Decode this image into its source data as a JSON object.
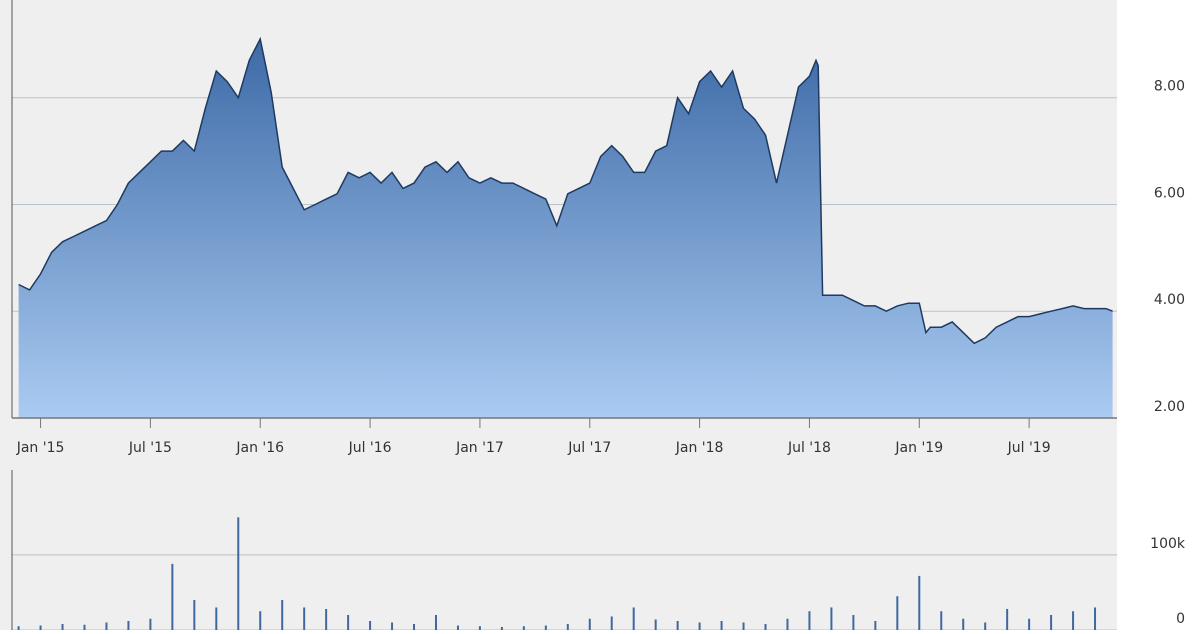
{
  "chart_data": [
    {
      "type": "area",
      "color": "#1f3a60",
      "grid": true,
      "x": [
        2014.9,
        2014.95,
        2015.0,
        2015.05,
        2015.1,
        2015.15,
        2015.2,
        2015.25,
        2015.3,
        2015.35,
        2015.4,
        2015.45,
        2015.5,
        2015.55,
        2015.6,
        2015.65,
        2015.7,
        2015.75,
        2015.8,
        2015.85,
        2015.9,
        2015.95,
        2016.0,
        2016.05,
        2016.1,
        2016.15,
        2016.2,
        2016.25,
        2016.3,
        2016.35,
        2016.4,
        2016.45,
        2016.5,
        2016.55,
        2016.6,
        2016.65,
        2016.7,
        2016.75,
        2016.8,
        2016.85,
        2016.9,
        2016.95,
        2017.0,
        2017.05,
        2017.1,
        2017.15,
        2017.2,
        2017.25,
        2017.3,
        2017.35,
        2017.4,
        2017.45,
        2017.5,
        2017.55,
        2017.6,
        2017.65,
        2017.7,
        2017.75,
        2017.8,
        2017.85,
        2017.9,
        2017.95,
        2018.0,
        2018.05,
        2018.1,
        2018.15,
        2018.2,
        2018.25,
        2018.3,
        2018.35,
        2018.4,
        2018.45,
        2018.5,
        2018.53,
        2018.54,
        2018.56,
        2018.6,
        2018.65,
        2018.7,
        2018.75,
        2018.8,
        2018.85,
        2018.9,
        2018.95,
        2019.0,
        2019.03,
        2019.05,
        2019.1,
        2019.15,
        2019.2,
        2019.25,
        2019.3,
        2019.35,
        2019.4,
        2019.45,
        2019.5,
        2019.55,
        2019.6,
        2019.65,
        2019.7,
        2019.75,
        2019.8,
        2019.85,
        2019.88
      ],
      "values": [
        4.5,
        4.4,
        4.7,
        5.1,
        5.3,
        5.4,
        5.5,
        5.6,
        5.7,
        6.0,
        6.4,
        6.6,
        6.8,
        7.0,
        7.0,
        7.2,
        7.0,
        7.8,
        8.5,
        8.3,
        8.0,
        8.7,
        9.1,
        8.1,
        6.7,
        6.3,
        5.9,
        6.0,
        6.1,
        6.2,
        6.6,
        6.5,
        6.6,
        6.4,
        6.6,
        6.3,
        6.4,
        6.7,
        6.8,
        6.6,
        6.8,
        6.5,
        6.4,
        6.5,
        6.4,
        6.4,
        6.3,
        6.2,
        6.1,
        5.6,
        6.2,
        6.3,
        6.4,
        6.9,
        7.1,
        6.9,
        6.6,
        6.6,
        7.0,
        7.1,
        8.0,
        7.7,
        8.3,
        8.5,
        8.2,
        8.5,
        7.8,
        7.6,
        7.3,
        6.4,
        7.3,
        8.2,
        8.4,
        8.7,
        8.6,
        4.3,
        4.3,
        4.3,
        4.2,
        4.1,
        4.1,
        4.0,
        4.1,
        4.15,
        4.15,
        3.6,
        3.7,
        3.7,
        3.8,
        3.6,
        3.4,
        3.5,
        3.7,
        3.8,
        3.9,
        3.9,
        3.95,
        4.0,
        4.05,
        4.1,
        4.05,
        4.05,
        4.05,
        4.0
      ],
      "xlim": [
        2014.87,
        2019.9
      ],
      "xticks": [
        {
          "value": 2015.0,
          "label": "Jan '15"
        },
        {
          "value": 2015.5,
          "label": "Jul '15"
        },
        {
          "value": 2016.0,
          "label": "Jan '16"
        },
        {
          "value": 2016.5,
          "label": "Jul '16"
        },
        {
          "value": 2017.0,
          "label": "Jan '17"
        },
        {
          "value": 2017.5,
          "label": "Jul '17"
        },
        {
          "value": 2018.0,
          "label": "Jan '18"
        },
        {
          "value": 2018.5,
          "label": "Jul '18"
        },
        {
          "value": 2019.0,
          "label": "Jan '19"
        },
        {
          "value": 2019.5,
          "label": "Jul '19"
        }
      ],
      "ylim": [
        2,
        9.83
      ],
      "yticks": [
        {
          "value": 2,
          "label": "2.00"
        },
        {
          "value": 4,
          "label": "4.00"
        },
        {
          "value": 6,
          "label": "6.00"
        },
        {
          "value": 8,
          "label": "8.00"
        }
      ]
    },
    {
      "type": "bar",
      "color": "#3f68a0",
      "grid": true,
      "x": [
        2014.9,
        2015.0,
        2015.1,
        2015.2,
        2015.3,
        2015.4,
        2015.5,
        2015.6,
        2015.7,
        2015.8,
        2015.9,
        2016.0,
        2016.1,
        2016.2,
        2016.3,
        2016.4,
        2016.5,
        2016.6,
        2016.7,
        2016.8,
        2016.9,
        2017.0,
        2017.1,
        2017.2,
        2017.3,
        2017.4,
        2017.5,
        2017.6,
        2017.7,
        2017.8,
        2017.9,
        2018.0,
        2018.1,
        2018.2,
        2018.3,
        2018.4,
        2018.5,
        2018.6,
        2018.7,
        2018.8,
        2018.9,
        2019.0,
        2019.1,
        2019.2,
        2019.3,
        2019.4,
        2019.5,
        2019.6,
        2019.7,
        2019.8
      ],
      "values": [
        5000,
        6000,
        8000,
        7000,
        10000,
        12000,
        15000,
        88000,
        40000,
        30000,
        150000,
        25000,
        40000,
        30000,
        28000,
        20000,
        12000,
        10000,
        8000,
        20000,
        6000,
        5000,
        4000,
        5000,
        6000,
        8000,
        15000,
        18000,
        30000,
        14000,
        12000,
        10000,
        12000,
        10000,
        8000,
        15000,
        25000,
        30000,
        20000,
        12000,
        45000,
        72000,
        25000,
        15000,
        10000,
        28000,
        15000,
        20000,
        25000,
        30000
      ],
      "xlim": [
        2014.87,
        2019.9
      ],
      "ylim": [
        0,
        213000
      ],
      "yticks": [
        0,
        {
          "value": 100000,
          "label": "100k"
        }
      ]
    }
  ]
}
